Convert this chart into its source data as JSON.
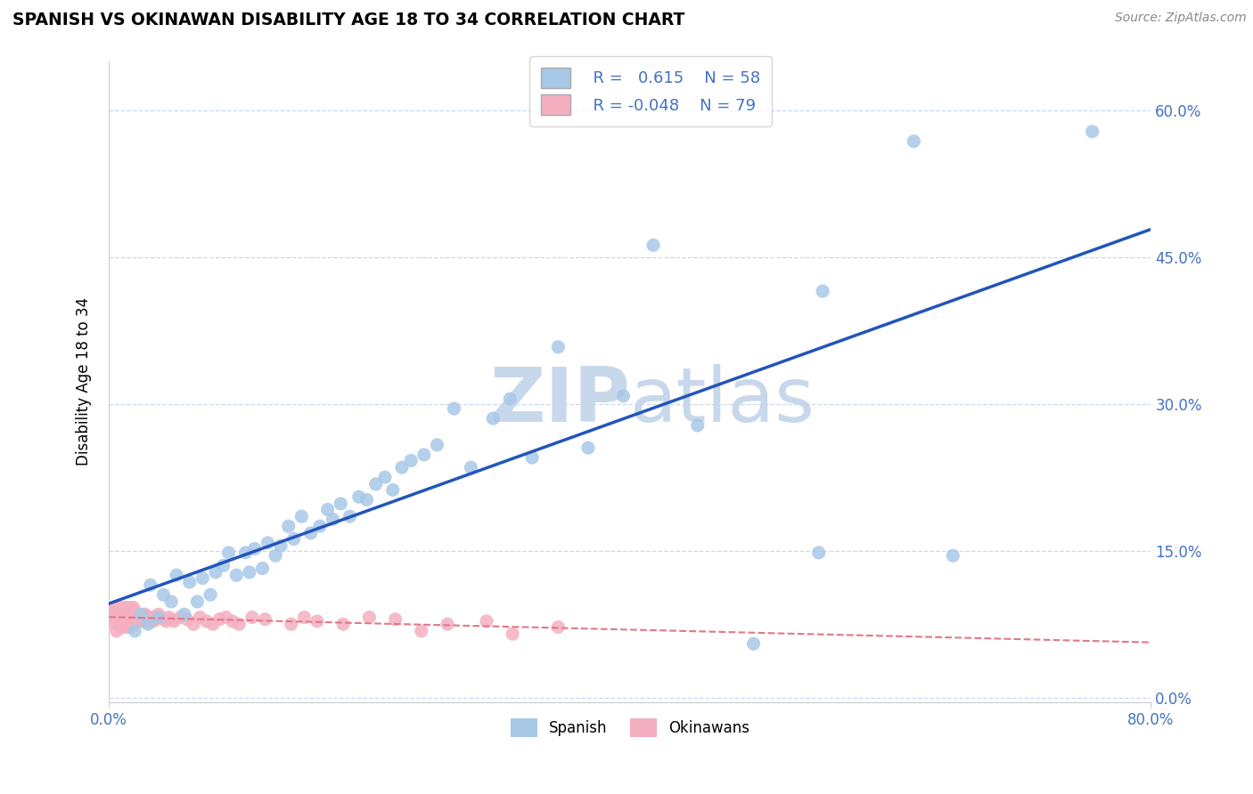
{
  "title": "SPANISH VS OKINAWAN DISABILITY AGE 18 TO 34 CORRELATION CHART",
  "source": "Source: ZipAtlas.com",
  "ylabel_label": "Disability Age 18 to 34",
  "xlim": [
    0.0,
    0.8
  ],
  "ylim": [
    -0.005,
    0.65
  ],
  "yticks": [
    0.0,
    0.15,
    0.3,
    0.45,
    0.6
  ],
  "ytick_labels": [
    "0.0%",
    "15.0%",
    "30.0%",
    "45.0%",
    "60.0%"
  ],
  "xtick_labels": [
    "0.0%",
    "80.0%"
  ],
  "spanish_R": 0.615,
  "spanish_N": 58,
  "okinawan_R": -0.048,
  "okinawan_N": 79,
  "spanish_color": "#a8c8e8",
  "okinawan_color": "#f4b0c0",
  "spanish_line_color": "#2255bb",
  "okinawan_line_color": "#e07888",
  "text_color": "#4472c4",
  "watermark_color": "#c8d8ec",
  "grid_color": "#c8d8ec",
  "background_color": "#ffffff",
  "spanish_x": [
    0.02,
    0.025,
    0.03,
    0.032,
    0.038,
    0.042,
    0.048,
    0.052,
    0.058,
    0.062,
    0.068,
    0.072,
    0.078,
    0.082,
    0.088,
    0.092,
    0.098,
    0.105,
    0.108,
    0.112,
    0.118,
    0.122,
    0.128,
    0.132,
    0.138,
    0.142,
    0.148,
    0.155,
    0.162,
    0.168,
    0.172,
    0.178,
    0.185,
    0.192,
    0.198,
    0.205,
    0.212,
    0.218,
    0.225,
    0.232,
    0.242,
    0.252,
    0.265,
    0.278,
    0.295,
    0.308,
    0.325,
    0.345,
    0.368,
    0.395,
    0.418,
    0.452,
    0.495,
    0.545,
    0.548,
    0.618,
    0.648,
    0.755
  ],
  "spanish_y": [
    0.068,
    0.085,
    0.075,
    0.115,
    0.082,
    0.105,
    0.098,
    0.125,
    0.085,
    0.118,
    0.098,
    0.122,
    0.105,
    0.128,
    0.135,
    0.148,
    0.125,
    0.148,
    0.128,
    0.152,
    0.132,
    0.158,
    0.145,
    0.155,
    0.175,
    0.162,
    0.185,
    0.168,
    0.175,
    0.192,
    0.182,
    0.198,
    0.185,
    0.205,
    0.202,
    0.218,
    0.225,
    0.212,
    0.235,
    0.242,
    0.248,
    0.258,
    0.295,
    0.235,
    0.285,
    0.305,
    0.245,
    0.358,
    0.255,
    0.308,
    0.462,
    0.278,
    0.055,
    0.148,
    0.415,
    0.568,
    0.145,
    0.578
  ],
  "okinawan_x": [
    0.003,
    0.004,
    0.005,
    0.005,
    0.006,
    0.006,
    0.007,
    0.007,
    0.008,
    0.008,
    0.009,
    0.009,
    0.01,
    0.01,
    0.011,
    0.011,
    0.012,
    0.012,
    0.013,
    0.013,
    0.014,
    0.014,
    0.015,
    0.015,
    0.016,
    0.016,
    0.017,
    0.017,
    0.018,
    0.018,
    0.019,
    0.019,
    0.02,
    0.021,
    0.022,
    0.023,
    0.024,
    0.025,
    0.026,
    0.027,
    0.028,
    0.029,
    0.03,
    0.031,
    0.032,
    0.033,
    0.034,
    0.035,
    0.036,
    0.038,
    0.04,
    0.042,
    0.044,
    0.046,
    0.048,
    0.05,
    0.055,
    0.06,
    0.065,
    0.07,
    0.075,
    0.08,
    0.085,
    0.09,
    0.095,
    0.1,
    0.11,
    0.12,
    0.14,
    0.15,
    0.16,
    0.18,
    0.2,
    0.22,
    0.24,
    0.26,
    0.29,
    0.31,
    0.345
  ],
  "okinawan_y": [
    0.082,
    0.088,
    0.075,
    0.092,
    0.068,
    0.085,
    0.078,
    0.092,
    0.072,
    0.088,
    0.075,
    0.09,
    0.078,
    0.092,
    0.072,
    0.088,
    0.075,
    0.09,
    0.078,
    0.092,
    0.072,
    0.088,
    0.075,
    0.09,
    0.078,
    0.092,
    0.072,
    0.088,
    0.075,
    0.09,
    0.078,
    0.092,
    0.082,
    0.078,
    0.085,
    0.08,
    0.078,
    0.082,
    0.08,
    0.078,
    0.085,
    0.082,
    0.078,
    0.08,
    0.082,
    0.08,
    0.078,
    0.082,
    0.08,
    0.085,
    0.082,
    0.08,
    0.078,
    0.082,
    0.08,
    0.078,
    0.082,
    0.08,
    0.075,
    0.082,
    0.078,
    0.075,
    0.08,
    0.082,
    0.078,
    0.075,
    0.082,
    0.08,
    0.075,
    0.082,
    0.078,
    0.075,
    0.082,
    0.08,
    0.068,
    0.075,
    0.078,
    0.065,
    0.072
  ]
}
